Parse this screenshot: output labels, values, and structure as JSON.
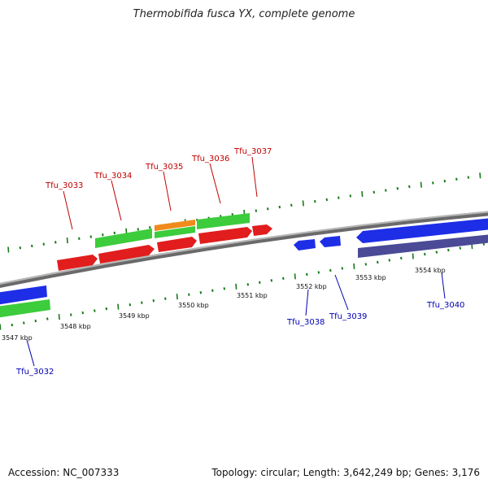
{
  "title": "Thermobifida fusca YX, complete genome",
  "footer": {
    "accession": "Accession: NC_007333",
    "summary": "Topology: circular; Length: 3,642,249 bp; Genes: 3,176"
  },
  "scale_ticks": [
    "3547 kbp",
    "3548 kbp",
    "3549 kbp",
    "3550 kbp",
    "3551 kbp",
    "3552 kbp",
    "3553 kbp",
    "3554 kbp"
  ],
  "forward_labels": [
    "Tfu_3033",
    "Tfu_3034",
    "Tfu_3035",
    "Tfu_3036",
    "Tfu_3037"
  ],
  "reverse_labels": [
    "Tfu_3032",
    "Tfu_3038",
    "Tfu_3039",
    "Tfu_3040"
  ],
  "colors": {
    "forward_gene": "#e11d1d",
    "reverse_gene": "#1d2ee6",
    "cds_feature": "#3ccc3c",
    "misc_feature": "#f08a1a",
    "other_feature": "#4a4a96",
    "backbone": "#8a8a8a",
    "tick": "#1a7a1a",
    "forward_label": "#c00000",
    "reverse_label": "#0000b0"
  }
}
